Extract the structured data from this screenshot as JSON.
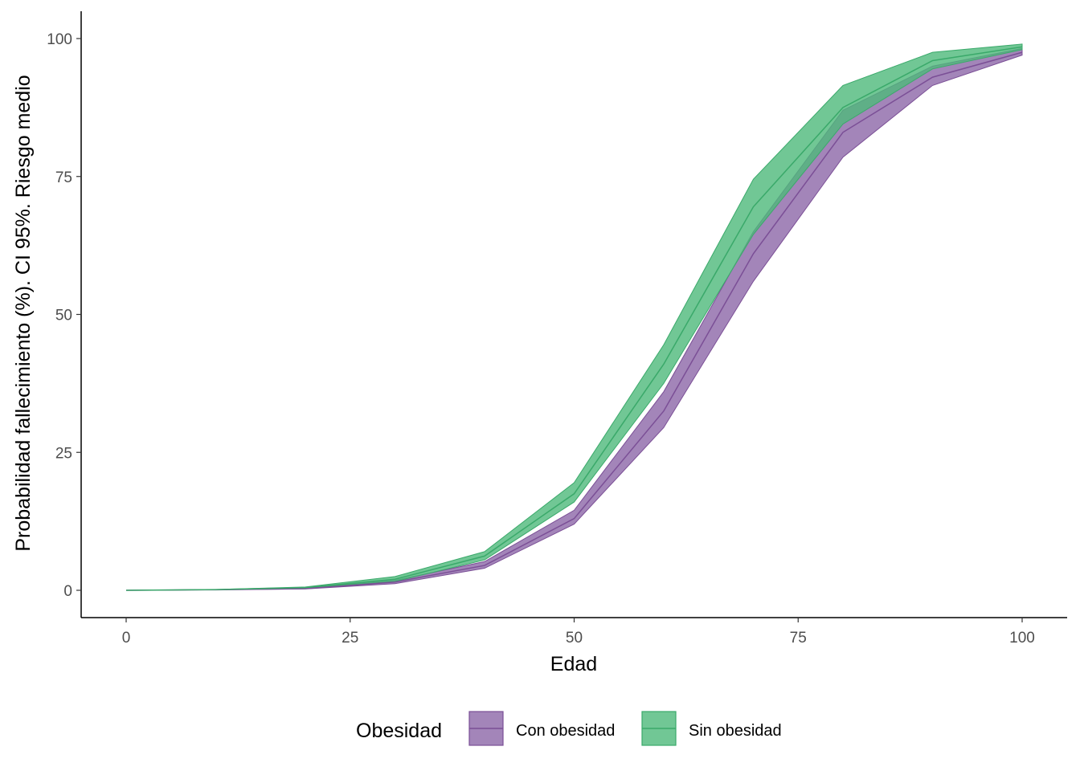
{
  "chart_data": {
    "type": "area",
    "xlabel": "Edad",
    "ylabel": "Probabilidad fallecimiento (%). CI 95%. Riesgo medio",
    "xlim": [
      0,
      100
    ],
    "ylim": [
      0,
      100
    ],
    "x_ticks": [
      "0",
      "25",
      "50",
      "75",
      "100"
    ],
    "y_ticks": [
      "0",
      "25",
      "50",
      "75",
      "100"
    ],
    "x": [
      0,
      10,
      20,
      30,
      40,
      50,
      60,
      70,
      80,
      90,
      100
    ],
    "legend": {
      "title": "Obesidad",
      "position": "bottom"
    },
    "grid": false,
    "series": [
      {
        "name": "Con obesidad",
        "color": "#7b4f96",
        "fill": "#8c67a8",
        "mean": [
          0.0,
          0.1,
          0.3,
          1.5,
          4.5,
          13.0,
          32.5,
          61.0,
          83.0,
          93.0,
          97.5
        ],
        "lower": [
          0.0,
          0.1,
          0.25,
          1.2,
          4.0,
          12.0,
          29.5,
          56.0,
          78.5,
          91.5,
          97.0
        ],
        "upper": [
          0.0,
          0.12,
          0.4,
          1.8,
          5.2,
          14.5,
          36.0,
          65.0,
          87.0,
          95.0,
          98.2
        ]
      },
      {
        "name": "Sin obesidad",
        "color": "#3aa96a",
        "fill": "#4db97b",
        "mean": [
          0.0,
          0.12,
          0.5,
          2.0,
          6.2,
          17.5,
          41.0,
          69.5,
          87.5,
          96.0,
          98.5
        ],
        "lower": [
          0.0,
          0.1,
          0.4,
          1.6,
          5.5,
          16.0,
          37.5,
          64.5,
          84.5,
          94.5,
          98.0
        ],
        "upper": [
          0.0,
          0.15,
          0.6,
          2.5,
          7.0,
          19.5,
          44.5,
          74.5,
          91.5,
          97.5,
          99.0
        ]
      }
    ]
  }
}
